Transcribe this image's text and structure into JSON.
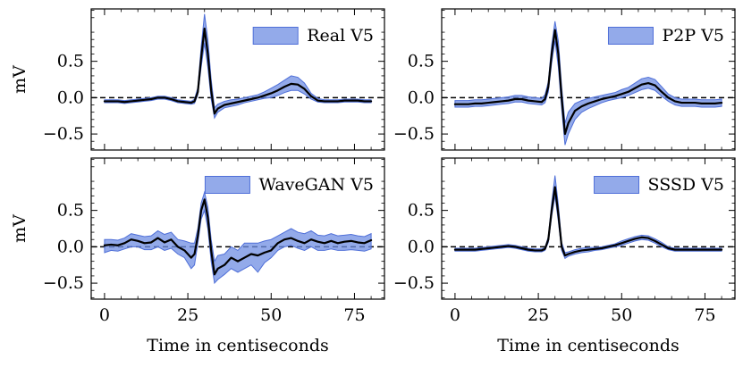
{
  "chart_data": [
    {
      "type": "line",
      "legend": "Real V5",
      "ylabel": "mV",
      "xlabel": "",
      "xlim": [
        -4,
        84
      ],
      "ylim": [
        -0.72,
        1.22
      ],
      "xticks": [
        0,
        25,
        50,
        75
      ],
      "xtick_labels": [
        "0",
        "25",
        "50",
        "75"
      ],
      "yticks": [
        -0.5,
        0.0,
        0.5
      ],
      "ytick_labels": [
        "−0.5",
        "0.0",
        "0.5"
      ],
      "reference_line_y": 0.0,
      "x": [
        0,
        2,
        4,
        6,
        8,
        10,
        12,
        14,
        16,
        18,
        20,
        22,
        24,
        26,
        27,
        28,
        29,
        30,
        31,
        32,
        33,
        34,
        36,
        38,
        40,
        42,
        44,
        46,
        48,
        50,
        52,
        54,
        56,
        58,
        60,
        62,
        64,
        66,
        68,
        70,
        72,
        74,
        76,
        78,
        80
      ],
      "mean": [
        -0.05,
        -0.05,
        -0.05,
        -0.06,
        -0.05,
        -0.04,
        -0.03,
        -0.02,
        0.0,
        0.0,
        -0.02,
        -0.05,
        -0.06,
        -0.07,
        -0.05,
        0.08,
        0.55,
        0.95,
        0.6,
        0.1,
        -0.22,
        -0.15,
        -0.1,
        -0.08,
        -0.06,
        -0.04,
        -0.02,
        0.0,
        0.03,
        0.06,
        0.1,
        0.15,
        0.19,
        0.18,
        0.12,
        0.02,
        -0.04,
        -0.05,
        -0.05,
        -0.05,
        -0.04,
        -0.04,
        -0.04,
        -0.05,
        -0.05
      ],
      "lower": [
        -0.07,
        -0.07,
        -0.07,
        -0.08,
        -0.07,
        -0.06,
        -0.05,
        -0.04,
        -0.02,
        -0.02,
        -0.04,
        -0.07,
        -0.08,
        -0.09,
        -0.08,
        0.04,
        0.42,
        0.75,
        0.42,
        -0.02,
        -0.28,
        -0.2,
        -0.14,
        -0.12,
        -0.1,
        -0.07,
        -0.05,
        -0.03,
        -0.01,
        0.0,
        0.03,
        0.07,
        0.1,
        0.1,
        0.05,
        -0.02,
        -0.06,
        -0.07,
        -0.07,
        -0.07,
        -0.06,
        -0.06,
        -0.06,
        -0.07,
        -0.07
      ],
      "upper": [
        -0.03,
        -0.03,
        -0.03,
        -0.04,
        -0.03,
        -0.02,
        -0.01,
        0.0,
        0.02,
        0.02,
        0.0,
        -0.03,
        -0.04,
        -0.05,
        -0.02,
        0.14,
        0.7,
        1.15,
        0.8,
        0.25,
        -0.14,
        -0.09,
        -0.05,
        -0.03,
        -0.02,
        0.0,
        0.02,
        0.04,
        0.08,
        0.13,
        0.18,
        0.24,
        0.3,
        0.28,
        0.2,
        0.06,
        -0.01,
        -0.03,
        -0.03,
        -0.03,
        -0.02,
        -0.02,
        -0.02,
        -0.03,
        -0.03
      ]
    },
    {
      "type": "line",
      "legend": "P2P V5",
      "ylabel": "",
      "xlabel": "",
      "xlim": [
        -4,
        84
      ],
      "ylim": [
        -0.72,
        1.22
      ],
      "xticks": [
        0,
        25,
        50,
        75
      ],
      "xtick_labels": [
        "0",
        "25",
        "50",
        "75"
      ],
      "yticks": [
        -0.5,
        0.0,
        0.5
      ],
      "ytick_labels": [
        "−0.5",
        "0.0",
        "0.5"
      ],
      "reference_line_y": 0.0,
      "x": [
        0,
        2,
        4,
        6,
        8,
        10,
        12,
        14,
        16,
        18,
        20,
        22,
        24,
        26,
        27,
        28,
        29,
        30,
        31,
        32,
        33,
        34,
        36,
        38,
        40,
        42,
        44,
        46,
        48,
        50,
        52,
        54,
        56,
        58,
        60,
        62,
        64,
        66,
        68,
        70,
        72,
        74,
        76,
        78,
        80
      ],
      "mean": [
        -0.09,
        -0.09,
        -0.09,
        -0.08,
        -0.08,
        -0.07,
        -0.06,
        -0.05,
        -0.04,
        -0.02,
        -0.02,
        -0.04,
        -0.05,
        -0.06,
        -0.02,
        0.15,
        0.6,
        0.93,
        0.6,
        0.0,
        -0.5,
        -0.35,
        -0.18,
        -0.12,
        -0.08,
        -0.05,
        -0.02,
        0.0,
        0.02,
        0.05,
        0.08,
        0.13,
        0.18,
        0.2,
        0.17,
        0.08,
        0.0,
        -0.05,
        -0.07,
        -0.07,
        -0.07,
        -0.08,
        -0.08,
        -0.08,
        -0.07
      ],
      "lower": [
        -0.13,
        -0.13,
        -0.13,
        -0.12,
        -0.12,
        -0.11,
        -0.1,
        -0.09,
        -0.08,
        -0.06,
        -0.06,
        -0.08,
        -0.09,
        -0.1,
        -0.07,
        0.08,
        0.48,
        0.78,
        0.42,
        -0.15,
        -0.65,
        -0.5,
        -0.3,
        -0.2,
        -0.15,
        -0.11,
        -0.07,
        -0.04,
        -0.02,
        0.0,
        0.03,
        0.07,
        0.11,
        0.13,
        0.1,
        0.02,
        -0.05,
        -0.1,
        -0.12,
        -0.12,
        -0.12,
        -0.13,
        -0.13,
        -0.13,
        -0.12
      ],
      "upper": [
        -0.04,
        -0.04,
        -0.04,
        -0.03,
        -0.03,
        -0.02,
        -0.01,
        0.0,
        0.01,
        0.03,
        0.03,
        0.01,
        0.0,
        -0.01,
        0.04,
        0.22,
        0.72,
        1.05,
        0.78,
        0.15,
        -0.35,
        -0.2,
        -0.08,
        -0.04,
        -0.01,
        0.01,
        0.03,
        0.05,
        0.07,
        0.11,
        0.14,
        0.2,
        0.26,
        0.28,
        0.25,
        0.15,
        0.05,
        0.0,
        -0.02,
        -0.02,
        -0.02,
        -0.03,
        -0.03,
        -0.03,
        -0.02
      ]
    },
    {
      "type": "line",
      "legend": "WaveGAN V5",
      "ylabel": "mV",
      "xlabel": "Time in centiseconds",
      "xlim": [
        -4,
        84
      ],
      "ylim": [
        -0.72,
        1.22
      ],
      "xticks": [
        0,
        25,
        50,
        75
      ],
      "xtick_labels": [
        "0",
        "25",
        "50",
        "75"
      ],
      "yticks": [
        -0.5,
        0.0,
        0.5
      ],
      "ytick_labels": [
        "−0.5",
        "0.0",
        "0.5"
      ],
      "reference_line_y": 0.0,
      "x": [
        0,
        2,
        4,
        6,
        8,
        10,
        12,
        14,
        16,
        18,
        20,
        22,
        24,
        26,
        27,
        28,
        29,
        30,
        31,
        32,
        33,
        34,
        36,
        38,
        40,
        42,
        44,
        46,
        48,
        50,
        52,
        54,
        56,
        58,
        60,
        62,
        64,
        66,
        68,
        70,
        72,
        74,
        76,
        78,
        80
      ],
      "mean": [
        0.02,
        0.03,
        0.02,
        0.05,
        0.1,
        0.08,
        0.05,
        0.06,
        0.12,
        0.06,
        0.1,
        0.0,
        -0.05,
        -0.15,
        -0.1,
        0.15,
        0.5,
        0.65,
        0.4,
        -0.05,
        -0.38,
        -0.3,
        -0.25,
        -0.15,
        -0.2,
        -0.15,
        -0.1,
        -0.12,
        -0.08,
        -0.05,
        0.05,
        0.1,
        0.12,
        0.08,
        0.05,
        0.1,
        0.07,
        0.05,
        0.08,
        0.05,
        0.07,
        0.08,
        0.06,
        0.05,
        0.09
      ],
      "lower": [
        -0.08,
        -0.05,
        -0.06,
        -0.03,
        0.0,
        0.0,
        -0.04,
        -0.04,
        0.0,
        -0.05,
        -0.02,
        -0.1,
        -0.15,
        -0.3,
        -0.25,
        0.05,
        0.38,
        0.5,
        0.25,
        -0.2,
        -0.5,
        -0.45,
        -0.38,
        -0.3,
        -0.35,
        -0.3,
        -0.25,
        -0.35,
        -0.22,
        -0.15,
        -0.05,
        0.0,
        0.02,
        -0.02,
        -0.05,
        0.0,
        -0.05,
        -0.05,
        -0.03,
        -0.05,
        -0.05,
        -0.04,
        -0.05,
        -0.06,
        -0.03
      ],
      "upper": [
        0.1,
        0.1,
        0.09,
        0.12,
        0.18,
        0.16,
        0.14,
        0.15,
        0.22,
        0.17,
        0.2,
        0.1,
        0.08,
        0.05,
        0.05,
        0.25,
        0.6,
        0.75,
        0.55,
        0.1,
        -0.2,
        -0.12,
        -0.1,
        0.0,
        -0.05,
        0.05,
        0.05,
        0.05,
        0.08,
        0.1,
        0.15,
        0.2,
        0.25,
        0.2,
        0.18,
        0.22,
        0.16,
        0.15,
        0.18,
        0.15,
        0.16,
        0.17,
        0.15,
        0.14,
        0.18
      ]
    },
    {
      "type": "line",
      "legend": "SSSD V5",
      "ylabel": "",
      "xlabel": "Time in centiseconds",
      "xlim": [
        -4,
        84
      ],
      "ylim": [
        -0.72,
        1.22
      ],
      "xticks": [
        0,
        25,
        50,
        75
      ],
      "xtick_labels": [
        "0",
        "25",
        "50",
        "75"
      ],
      "yticks": [
        -0.5,
        0.0,
        0.5
      ],
      "ytick_labels": [
        "−0.5",
        "0.0",
        "0.5"
      ],
      "reference_line_y": 0.0,
      "x": [
        0,
        2,
        4,
        6,
        8,
        10,
        12,
        14,
        16,
        18,
        20,
        22,
        24,
        26,
        27,
        28,
        29,
        30,
        31,
        32,
        33,
        34,
        36,
        38,
        40,
        42,
        44,
        46,
        48,
        50,
        52,
        54,
        56,
        58,
        60,
        62,
        64,
        66,
        68,
        70,
        72,
        74,
        76,
        78,
        80
      ],
      "mean": [
        -0.04,
        -0.04,
        -0.04,
        -0.04,
        -0.03,
        -0.02,
        -0.01,
        0.0,
        0.01,
        0.0,
        -0.02,
        -0.04,
        -0.05,
        -0.05,
        -0.03,
        0.1,
        0.5,
        0.82,
        0.45,
        0.0,
        -0.12,
        -0.1,
        -0.07,
        -0.05,
        -0.04,
        -0.03,
        -0.02,
        0.0,
        0.02,
        0.05,
        0.08,
        0.11,
        0.13,
        0.12,
        0.08,
        0.03,
        -0.02,
        -0.04,
        -0.04,
        -0.04,
        -0.04,
        -0.04,
        -0.04,
        -0.04,
        -0.04
      ],
      "lower": [
        -0.06,
        -0.06,
        -0.06,
        -0.06,
        -0.05,
        -0.04,
        -0.03,
        -0.02,
        -0.01,
        -0.02,
        -0.04,
        -0.06,
        -0.07,
        -0.07,
        -0.05,
        0.06,
        0.42,
        0.7,
        0.35,
        -0.05,
        -0.16,
        -0.13,
        -0.1,
        -0.08,
        -0.07,
        -0.05,
        -0.04,
        -0.02,
        0.0,
        0.02,
        0.05,
        0.08,
        0.1,
        0.09,
        0.05,
        0.0,
        -0.04,
        -0.06,
        -0.06,
        -0.06,
        -0.06,
        -0.06,
        -0.06,
        -0.06,
        -0.06
      ],
      "upper": [
        -0.02,
        -0.02,
        -0.02,
        -0.02,
        -0.01,
        0.0,
        0.01,
        0.02,
        0.03,
        0.02,
        0.0,
        -0.02,
        -0.03,
        -0.03,
        -0.01,
        0.14,
        0.6,
        0.98,
        0.58,
        0.06,
        -0.08,
        -0.07,
        -0.04,
        -0.02,
        -0.01,
        -0.01,
        0.0,
        0.02,
        0.04,
        0.08,
        0.11,
        0.14,
        0.16,
        0.15,
        0.11,
        0.06,
        0.0,
        -0.02,
        -0.02,
        -0.02,
        -0.02,
        -0.02,
        -0.02,
        -0.02,
        -0.02
      ]
    }
  ],
  "colors": {
    "band_fill": "#6f8ee3",
    "band_edge": "#4f6fd8",
    "mean_line": "#000000",
    "reference_line": "#000000",
    "axes": "#000000",
    "background": "#ffffff"
  }
}
